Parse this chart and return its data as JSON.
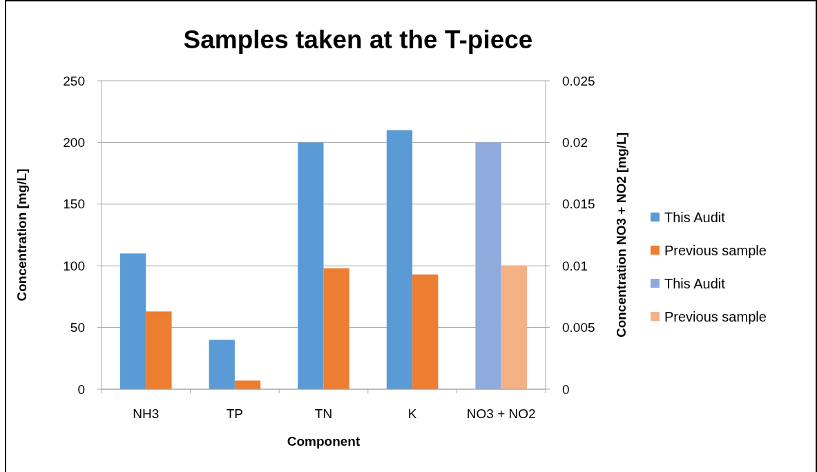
{
  "chart_data": {
    "type": "bar",
    "title": "Samples taken at the T-piece",
    "xlabel": "Component",
    "ylabel": "Concentration [mg/L]",
    "y2label": "Concentration NO3 + NO2 [mg/L]",
    "categories": [
      "NH3",
      "TP",
      "TN",
      "K",
      "NO3 + NO2"
    ],
    "series": [
      {
        "name": "This Audit",
        "color": "#5b9bd5",
        "values": [
          110,
          40,
          200,
          210,
          null
        ]
      },
      {
        "name": "Previous sample",
        "color": "#ed7d31",
        "values": [
          63,
          7,
          98,
          93,
          null
        ]
      },
      {
        "name": "This Audit",
        "color": "#8faadc",
        "axis": "y2",
        "values": [
          null,
          null,
          null,
          null,
          0.02
        ]
      },
      {
        "name": "Previous sample",
        "color": "#f4b183",
        "axis": "y2",
        "values": [
          null,
          null,
          null,
          null,
          0.01
        ]
      }
    ],
    "ylim": [
      0,
      250
    ],
    "yticks": [
      0,
      50,
      100,
      150,
      200,
      250
    ],
    "y2lim": [
      0,
      0.025
    ],
    "y2ticks": [
      0,
      0.005,
      0.01,
      0.015,
      0.02,
      0.025
    ],
    "grid": "y",
    "legend": "right"
  }
}
